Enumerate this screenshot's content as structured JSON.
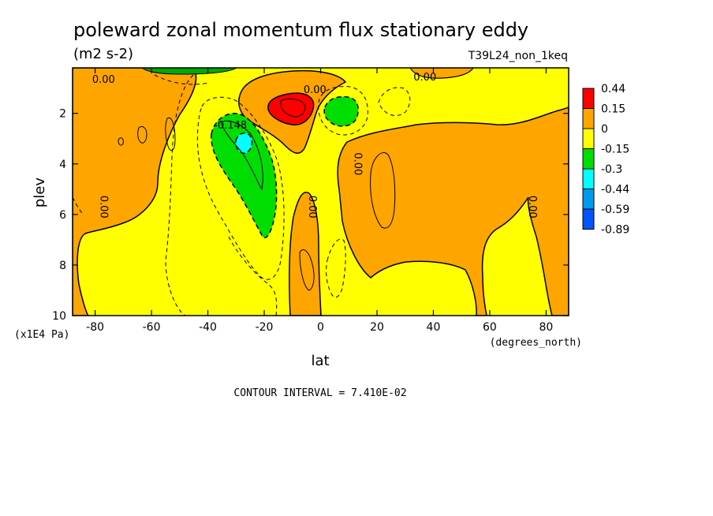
{
  "chart_data": {
    "type": "contour",
    "title": "poleward zonal momentum flux stationary eddy",
    "units": "(m2 s-2)",
    "run_label": "T39L24_non_1keq",
    "xlabel": "lat",
    "x_units": "(degrees_north)",
    "ylabel": "plev",
    "y_units": "(x1E4 Pa)",
    "x_ticks": [
      "-80",
      "-60",
      "-40",
      "-20",
      "0",
      "20",
      "40",
      "60",
      "80"
    ],
    "y_ticks": [
      "2",
      "4",
      "6",
      "8",
      "10"
    ],
    "xlim": [
      -88,
      88
    ],
    "ylim": [
      10,
      0.2
    ],
    "y_inverted": true,
    "contour_interval_text": "CONTOUR INTERVAL = 7.410E-02",
    "legend_position": "right",
    "legend": [
      {
        "label": "0.44",
        "color": "#ff0000"
      },
      {
        "label": "0.15",
        "color": "#ffa500"
      },
      {
        "label": "0",
        "color": "#ffff00"
      },
      {
        "label": "-0.15",
        "color": "#00dd00"
      },
      {
        "label": "-0.3",
        "color": "#00ffff"
      },
      {
        "label": "-0.44",
        "color": "#0099ee"
      },
      {
        "label": "-0.59",
        "color": "#0055ff"
      },
      {
        "label": "-0.89",
        "color": ""
      }
    ],
    "contour_labels": [
      {
        "text": "0.00",
        "lat": -77,
        "plev": 0.8
      },
      {
        "text": "0.00",
        "lat": -2,
        "plev": 1.2
      },
      {
        "text": "0.00",
        "lat": 37,
        "plev": 0.7
      },
      {
        "text": "-0.148",
        "lat": -32,
        "plev": 2.6
      },
      {
        "text": "0.00",
        "lat": 12,
        "plev": 4.0
      },
      {
        "text": "0.00",
        "lat": -78,
        "plev": 5.7
      },
      {
        "text": "0.00",
        "lat": -4,
        "plev": 5.7
      },
      {
        "text": "0.00",
        "lat": 74,
        "plev": 5.7
      }
    ],
    "features": [
      {
        "sign": "positive",
        "center_lat": -10,
        "center_plev": 1.8,
        "max_level": "0.44"
      },
      {
        "sign": "negative",
        "center_lat": 7,
        "center_plev": 1.9,
        "min_level": "-0.15"
      },
      {
        "sign": "negative",
        "center_lat": -28,
        "center_plev": 3.0,
        "min_level": "-0.3"
      },
      {
        "sign": "positive",
        "region": "high-latitude southern hemisphere",
        "level": "0.15"
      },
      {
        "sign": "positive",
        "region": "northern hemisphere lower levels",
        "level": "0.15"
      }
    ]
  }
}
